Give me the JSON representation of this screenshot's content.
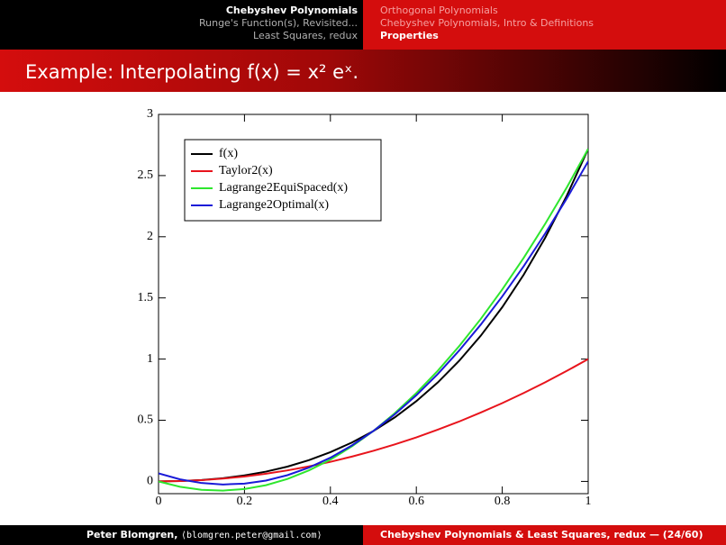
{
  "header": {
    "left": [
      "Chebyshev Polynomials",
      "Runge's Function(s), Revisited...",
      "Least Squares, redux"
    ],
    "right": [
      "Orthogonal Polynomials",
      "Chebyshev Polynomials, Intro & Definitions",
      "Properties"
    ]
  },
  "title": "Example: Interpolating f(x) = x² eˣ.",
  "chart_data": {
    "type": "line",
    "x": [
      0,
      0.05,
      0.1,
      0.15,
      0.2,
      0.25,
      0.3,
      0.35,
      0.4,
      0.45,
      0.5,
      0.55,
      0.6,
      0.65,
      0.7,
      0.75,
      0.8,
      0.85,
      0.9,
      0.95,
      1
    ],
    "series": [
      {
        "name": "f(x)",
        "color": "#000000",
        "values": [
          0,
          0.003,
          0.011,
          0.026,
          0.049,
          0.08,
          0.121,
          0.174,
          0.239,
          0.318,
          0.412,
          0.524,
          0.656,
          0.809,
          0.987,
          1.191,
          1.424,
          1.69,
          1.992,
          2.334,
          2.718
        ]
      },
      {
        "name": "Taylor2(x)",
        "color": "#e8141c",
        "values": [
          0,
          0.003,
          0.01,
          0.023,
          0.04,
          0.063,
          0.09,
          0.123,
          0.16,
          0.203,
          0.25,
          0.303,
          0.36,
          0.423,
          0.49,
          0.563,
          0.64,
          0.723,
          0.81,
          0.903,
          1
        ]
      },
      {
        "name": "Lagrange2EquiSpaced(x)",
        "color": "#2ee62e",
        "values": [
          0,
          -0.044,
          -0.069,
          -0.075,
          -0.062,
          -0.031,
          0.02,
          0.09,
          0.178,
          0.286,
          0.412,
          0.558,
          0.722,
          0.905,
          1.107,
          1.328,
          1.569,
          1.828,
          2.106,
          2.402,
          2.718
        ]
      },
      {
        "name": "Lagrange2Optimal(x)",
        "color": "#1a1ad8",
        "values": [
          0.066,
          0.017,
          -0.013,
          -0.025,
          -0.018,
          0.007,
          0.051,
          0.113,
          0.194,
          0.294,
          0.412,
          0.549,
          0.704,
          0.878,
          1.071,
          1.282,
          1.512,
          1.76,
          2.027,
          2.312,
          2.616
        ]
      }
    ],
    "xlim": [
      0,
      1
    ],
    "xticks": [
      0,
      0.2,
      0.4,
      0.6,
      0.8,
      1
    ],
    "ylim": [
      -0.1,
      3
    ],
    "yticks": [
      0,
      0.5,
      1,
      1.5,
      2,
      2.5,
      3
    ],
    "legend": "upper left"
  },
  "footer": {
    "author": "Peter Blomgren,",
    "email": "⟨blomgren.peter@gmail.com⟩",
    "right": "Chebyshev Polynomials & Least Squares, redux — (24/60)"
  }
}
